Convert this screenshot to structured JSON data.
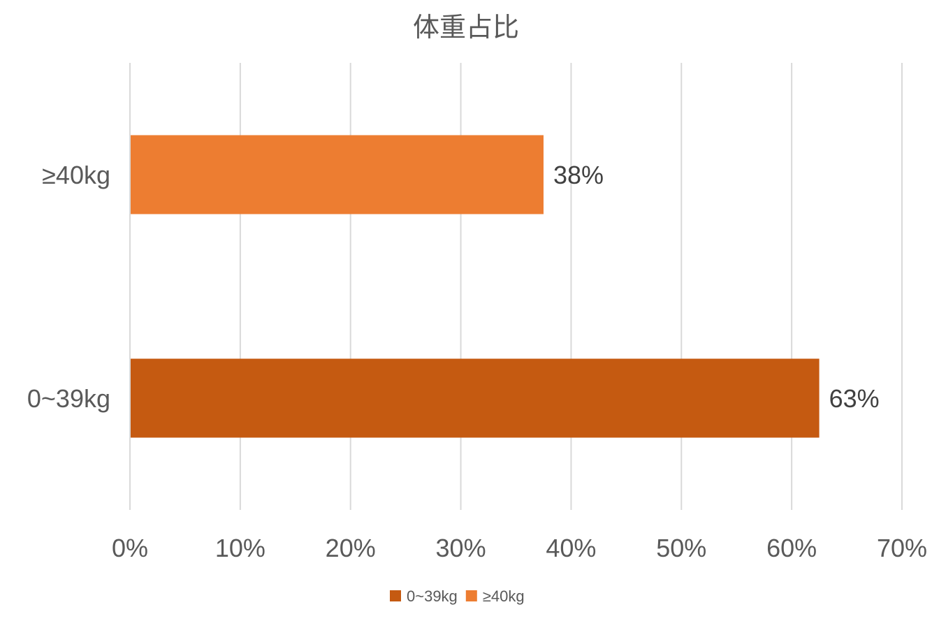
{
  "chart_data": {
    "type": "bar",
    "orientation": "horizontal",
    "title": "体重占比",
    "categories": [
      "0~39kg",
      "≥40kg"
    ],
    "series": [
      {
        "name": "0~39kg",
        "color": "#C55A11",
        "values": [
          62.5,
          null
        ],
        "data_label": "63%"
      },
      {
        "name": "≥40kg",
        "color": "#ED7D31",
        "values": [
          null,
          37.5
        ],
        "data_label": "38%"
      }
    ],
    "xlim": [
      0,
      70
    ],
    "x_ticks": [
      0,
      10,
      20,
      30,
      40,
      50,
      60,
      70
    ],
    "x_tick_labels": [
      "0%",
      "10%",
      "20%",
      "30%",
      "40%",
      "50%",
      "60%",
      "70%"
    ],
    "grid": "vertical",
    "legend": "bottom",
    "xlabel": "",
    "ylabel": ""
  }
}
